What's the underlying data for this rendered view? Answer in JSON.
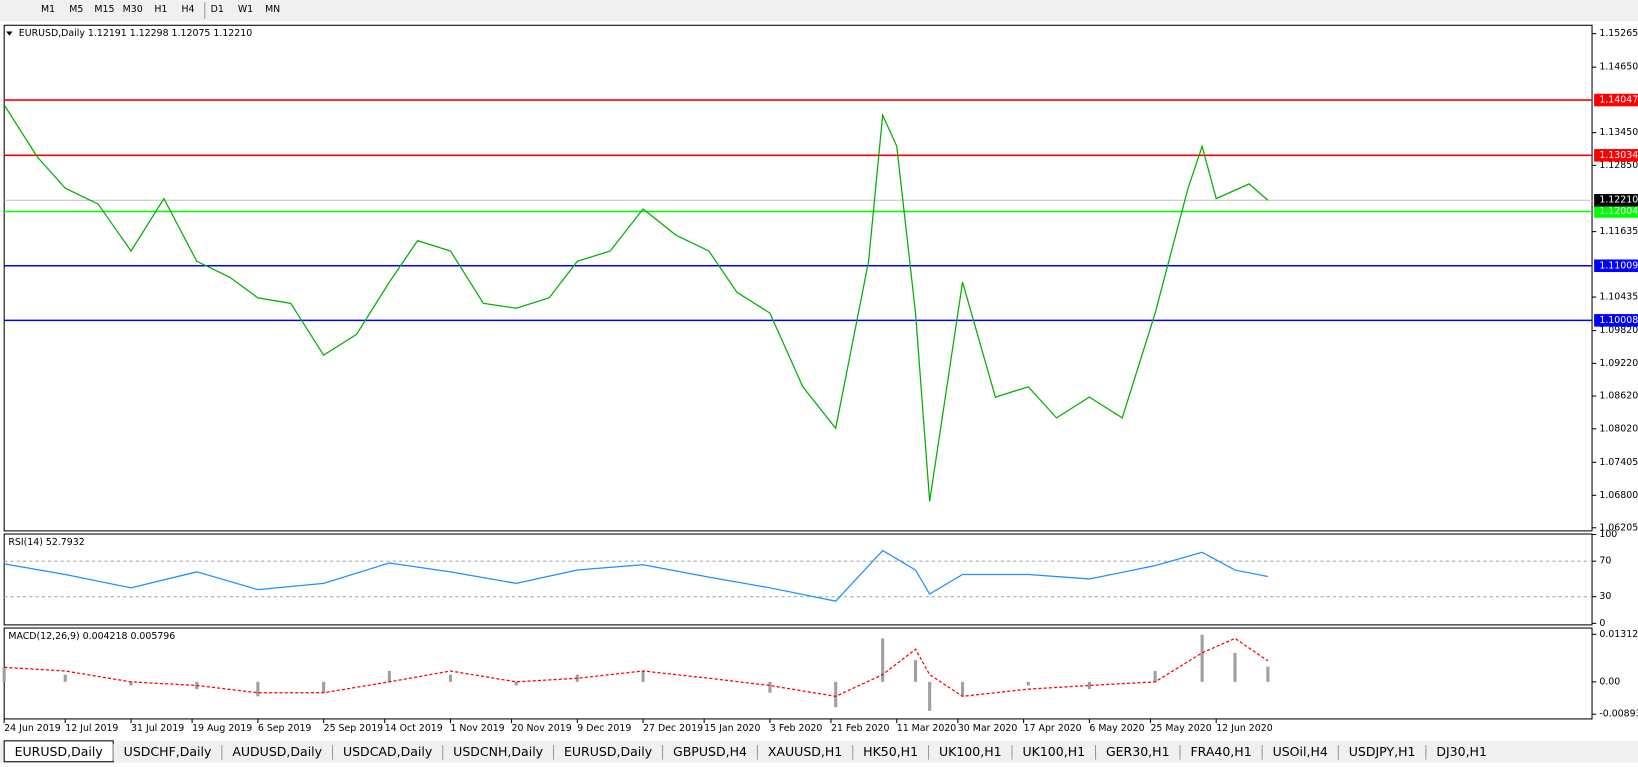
{
  "toolbar": {
    "timeframes": [
      "M1",
      "M5",
      "M15",
      "M30",
      "H1",
      "H4",
      "D1",
      "W1",
      "MN"
    ]
  },
  "chart_data": [
    {
      "type": "line",
      "title": "EURUSD,Daily  1.12191 1.12298 1.12075 1.12210",
      "color": "#00b000",
      "x": [
        0,
        7,
        13,
        20,
        27,
        34,
        41,
        48,
        54,
        61,
        68,
        75,
        82,
        88,
        95,
        102,
        109,
        116,
        122,
        129,
        136,
        143,
        150,
        156,
        163,
        170,
        177,
        184,
        187,
        190,
        194,
        197,
        201,
        204,
        211,
        218,
        224,
        231,
        238,
        245,
        252,
        255,
        258,
        265,
        269
      ],
      "values": [
        1.1396,
        1.1301,
        1.1243,
        1.1214,
        1.1128,
        1.1224,
        1.1109,
        1.108,
        1.1042,
        1.1032,
        1.0937,
        1.0975,
        1.1071,
        1.1147,
        1.1128,
        1.1032,
        1.1023,
        1.1042,
        1.1109,
        1.1128,
        1.1205,
        1.1157,
        1.1128,
        1.1052,
        1.1014,
        1.0879,
        1.0803,
        1.1109,
        1.1377,
        1.132,
        1.1014,
        1.0669,
        1.0898,
        1.1071,
        1.086,
        1.0879,
        1.0822,
        1.086,
        1.0822,
        1.1014,
        1.1243,
        1.132,
        1.1224,
        1.1251,
        1.1221
      ],
      "xlim": [
        0,
        338
      ],
      "ylim": [
        1.06148,
        1.15418
      ],
      "xticks": [
        {
          "value": 0,
          "label": "24 Jun 2019"
        },
        {
          "value": 13,
          "label": "12 Jul 2019"
        },
        {
          "value": 27,
          "label": "31 Jul 2019"
        },
        {
          "value": 40,
          "label": "19 Aug 2019"
        },
        {
          "value": 54,
          "label": "6 Sep 2019"
        },
        {
          "value": 68,
          "label": "25 Sep 2019"
        },
        {
          "value": 81,
          "label": "14 Oct 2019"
        },
        {
          "value": 95,
          "label": "1 Nov 2019"
        },
        {
          "value": 108,
          "label": "20 Nov 2019"
        },
        {
          "value": 122,
          "label": "9 Dec 2019"
        },
        {
          "value": 136,
          "label": "27 Dec 2019"
        },
        {
          "value": 149,
          "label": "15 Jan 2020"
        },
        {
          "value": 163,
          "label": "3 Feb 2020"
        },
        {
          "value": 176,
          "label": "21 Feb 2020"
        },
        {
          "value": 190,
          "label": "11 Mar 2020"
        },
        {
          "value": 203,
          "label": "30 Mar 2020"
        },
        {
          "value": 217,
          "label": "17 Apr 2020"
        },
        {
          "value": 231,
          "label": "6 May 2020"
        },
        {
          "value": 244,
          "label": "25 May 2020"
        },
        {
          "value": 258,
          "label": "12 Jun 2020"
        }
      ],
      "yticks": [
        1.15265,
        {
          "value": 1.1465,
          "label": "1.14650"
        },
        {
          "value": 1.1345,
          "label": "1.13450"
        },
        {
          "value": 1.1285,
          "label": "1.12850"
        },
        1.11635,
        1.10435,
        {
          "value": 1.0982,
          "label": "1.09820"
        },
        {
          "value": 1.0922,
          "label": "1.09220"
        },
        {
          "value": 1.0862,
          "label": "1.08620"
        },
        {
          "value": 1.0802,
          "label": "1.08020"
        },
        1.07405,
        {
          "value": 1.068,
          "label": "1.06800"
        },
        1.06205
      ],
      "levels": [
        {
          "value": 1.14047,
          "color": "#ff0000"
        },
        {
          "value": 1.13034,
          "color": "#ff0000"
        },
        {
          "value": 1.12004,
          "color": "#00ff00"
        },
        {
          "value": 1.11009,
          "color": "#0000ff"
        },
        {
          "value": 1.10008,
          "color": "#0000ff"
        }
      ],
      "current": {
        "value": 1.1221,
        "label": "1.12210"
      }
    },
    {
      "type": "line",
      "title": "RSI(14) 52.7932",
      "color": "#1e90ff",
      "x": [
        0,
        13,
        27,
        41,
        54,
        68,
        82,
        95,
        109,
        122,
        136,
        150,
        163,
        177,
        187,
        194,
        197,
        204,
        218,
        231,
        245,
        255,
        262,
        269
      ],
      "values": [
        67,
        55,
        40,
        58,
        38,
        45,
        68,
        58,
        45,
        60,
        66,
        52,
        40,
        25,
        82,
        60,
        33,
        55,
        55,
        50,
        65,
        80,
        60,
        52.7932
      ],
      "xlim": [
        0,
        338
      ],
      "ylim": [
        0,
        100
      ],
      "yticks": [
        100,
        70,
        30,
        0
      ]
    },
    {
      "type": "macd",
      "title": "MACD(12,26,9) 0.004218 0.005796",
      "x": [
        0,
        13,
        27,
        41,
        54,
        68,
        82,
        95,
        109,
        122,
        136,
        150,
        163,
        177,
        187,
        194,
        197,
        204,
        218,
        231,
        245,
        255,
        262,
        269
      ],
      "histogram": [
        0.004,
        0.002,
        -0.001,
        -0.002,
        -0.004,
        -0.003,
        0.003,
        0.002,
        -0.001,
        0.002,
        0.003,
        0,
        -0.003,
        -0.007,
        0.012,
        0.006,
        -0.008,
        -0.004,
        -0.001,
        -0.002,
        0.003,
        0.013,
        0.008,
        0.004218
      ],
      "signal": [
        0.004,
        0.003,
        0,
        -0.001,
        -0.003,
        -0.003,
        0,
        0.003,
        0,
        0.001,
        0.003,
        0.001,
        -0.001,
        -0.004,
        0.002,
        0.009,
        0.002,
        -0.004,
        -0.002,
        -0.001,
        0,
        0.008,
        0.012,
        0.005796
      ],
      "histogram_color": "#a0a0a0",
      "signal_color": "#ff0000",
      "xlim": [
        0,
        338
      ],
      "ylim": [
        -0.00893,
        0.013121
      ],
      "yticks": [
        0.013121,
        {
          "value": 0,
          "label": "0.00"
        },
        -0.00893
      ]
    }
  ],
  "tabs": [
    "EURUSD,Daily",
    "USDCHF,Daily",
    "AUDUSD,Daily",
    "USDCAD,Daily",
    "USDCNH,Daily",
    "EURUSD,Daily",
    "GBPUSD,H4",
    "XAUUSD,H1",
    "HK50,H1",
    "UK100,H1",
    "UK100,H1",
    "GER30,H1",
    "FRA40,H1",
    "USOil,H4",
    "USDJPY,H1",
    "DJ30,H1"
  ]
}
